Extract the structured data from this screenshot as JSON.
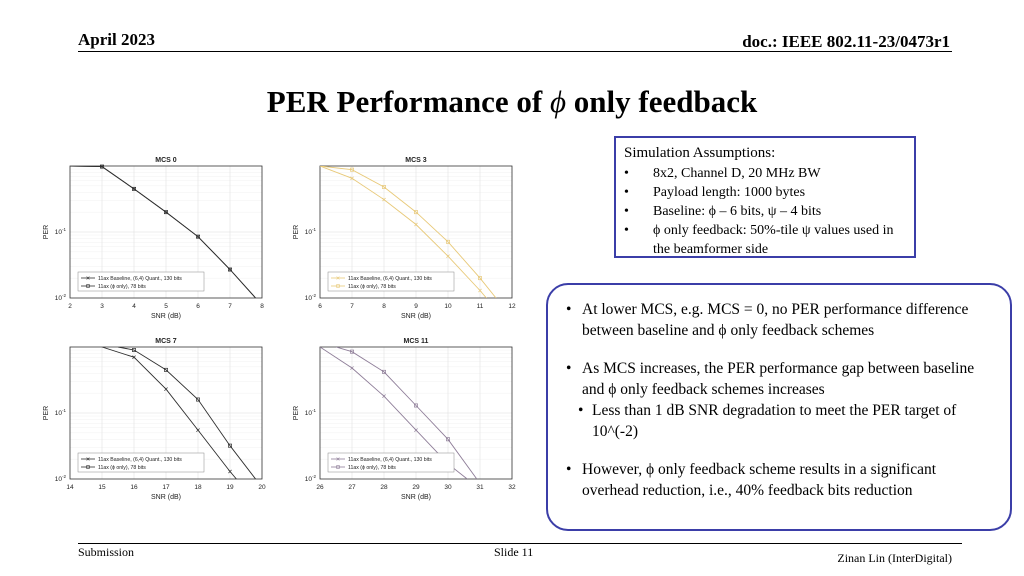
{
  "header": {
    "date": "April 2023",
    "doc": "doc.: IEEE 802.11-23/0473r1"
  },
  "title": {
    "prefix": "PER Performance of ",
    "symbol": "ϕ",
    "suffix": " only feedback"
  },
  "assumptions": {
    "heading": "Simulation Assumptions:",
    "items": [
      "8x2, Channel D, 20 MHz BW",
      "Payload length: 1000 bytes",
      "Baseline: ϕ – 6 bits, ψ – 4 bits",
      "ϕ only feedback: 50%-tile ψ values used in the beamformer side"
    ]
  },
  "bullets": {
    "b1": "At lower MCS, e.g. MCS = 0, no PER performance difference between baseline and ϕ only feedback schemes",
    "b2": "As MCS increases, the PER performance gap between baseline and ϕ only feedback schemes increases",
    "b2_sub": "Less than 1 dB SNR degradation to meet the PER target of 10^(-2)",
    "b3": "However, ϕ only feedback scheme results in a significant overhead reduction, i.e., 40% feedback bits reduction"
  },
  "footer": {
    "left": "Submission",
    "center": "Slide 11",
    "right": "Zinan Lin (InterDigital)"
  },
  "chart_data": [
    {
      "type": "line",
      "title": "MCS 0",
      "xlabel": "SNR (dB)",
      "ylabel": "PER",
      "xlim": [
        2,
        8
      ],
      "ylim": [
        0.01,
        1
      ],
      "yscale": "log",
      "xticks": [
        "2",
        "3",
        "4",
        "5",
        "6",
        "7",
        "8"
      ],
      "color": "#2e2e2e",
      "series": [
        {
          "name": "11ax Baseline, (6,4) Quant., 130 bits",
          "marker": "x",
          "x": [
            2,
            3,
            4,
            5,
            6,
            7,
            7.8
          ],
          "y": [
            1.0,
            0.98,
            0.45,
            0.2,
            0.085,
            0.027,
            0.01
          ]
        },
        {
          "name": "11ax (ϕ only), 78 bits",
          "marker": "s",
          "x": [
            2,
            3,
            4,
            5,
            6,
            7,
            7.8
          ],
          "y": [
            1.0,
            0.98,
            0.45,
            0.2,
            0.085,
            0.027,
            0.01
          ]
        }
      ]
    },
    {
      "type": "line",
      "title": "MCS 3",
      "xlabel": "SNR (dB)",
      "ylabel": "PER",
      "xlim": [
        6,
        12
      ],
      "ylim": [
        0.01,
        1
      ],
      "yscale": "log",
      "xticks": [
        "6",
        "7",
        "8",
        "9",
        "10",
        "11",
        "12"
      ],
      "color": "#e8c978",
      "series": [
        {
          "name": "11ax Baseline, (6,4) Quant., 130 bits",
          "marker": "x",
          "x": [
            6,
            7,
            8,
            9,
            10,
            11,
            11.2
          ],
          "y": [
            1.0,
            0.65,
            0.31,
            0.13,
            0.043,
            0.013,
            0.01
          ]
        },
        {
          "name": "11ax (ϕ only), 78 bits",
          "marker": "s",
          "x": [
            6,
            7,
            8,
            9,
            10,
            11,
            11.5
          ],
          "y": [
            1.0,
            0.88,
            0.48,
            0.2,
            0.071,
            0.02,
            0.01
          ]
        }
      ]
    },
    {
      "type": "line",
      "title": "MCS 7",
      "xlabel": "SNR (dB)",
      "ylabel": "PER",
      "xlim": [
        14,
        20
      ],
      "ylim": [
        0.01,
        1
      ],
      "yscale": "log",
      "xticks": [
        "14",
        "15",
        "16",
        "17",
        "18",
        "19",
        "20"
      ],
      "color": "#2e2e2e",
      "series": [
        {
          "name": "11ax Baseline, (6,4) Quant., 130 bits",
          "marker": "x",
          "x": [
            15,
            16,
            17,
            18,
            19,
            19.2
          ],
          "y": [
            1.0,
            0.7,
            0.23,
            0.055,
            0.013,
            0.01
          ]
        },
        {
          "name": "11ax (ϕ only), 78 bits",
          "marker": "s",
          "x": [
            15.5,
            16,
            17,
            18,
            19,
            19.8
          ],
          "y": [
            1.0,
            0.9,
            0.45,
            0.16,
            0.032,
            0.01
          ]
        }
      ]
    },
    {
      "type": "line",
      "title": "MCS 11",
      "xlabel": "SNR (dB)",
      "ylabel": "PER",
      "xlim": [
        26,
        32
      ],
      "ylim": [
        0.01,
        1
      ],
      "yscale": "log",
      "xticks": [
        "26",
        "27",
        "28",
        "29",
        "30",
        "31",
        "32"
      ],
      "color": "#8e7d98",
      "series": [
        {
          "name": "11ax Baseline, (6,4) Quant., 130 bits",
          "marker": "x",
          "x": [
            26,
            27,
            28,
            29,
            30,
            30.6
          ],
          "y": [
            1.0,
            0.48,
            0.18,
            0.055,
            0.017,
            0.01
          ]
        },
        {
          "name": "11ax (ϕ only), 78 bits",
          "marker": "s",
          "x": [
            26.5,
            27,
            28,
            29,
            30,
            30.9
          ],
          "y": [
            1.0,
            0.85,
            0.42,
            0.13,
            0.04,
            0.01
          ]
        }
      ]
    }
  ]
}
